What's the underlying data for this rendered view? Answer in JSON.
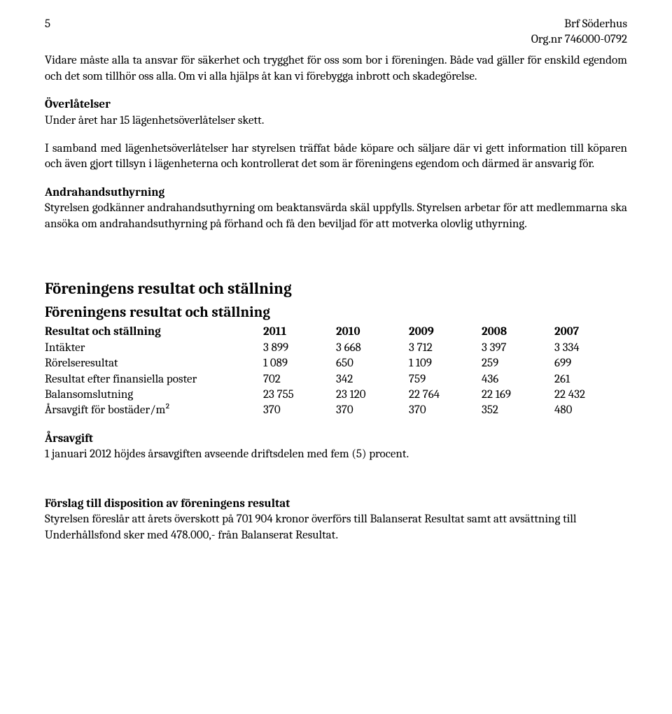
{
  "header": {
    "page_number": "5",
    "org_name": "Brf Söderhus",
    "org_nr": "Org.nr 746000-0792"
  },
  "intro": {
    "text": "Vidare måste alla ta ansvar för säkerhet och trygghet för oss som bor i föreningen. Både vad gäller för enskild egendom och det som tillhör oss alla. Om vi alla hjälps åt kan vi förebygga inbrott och skadegörelse."
  },
  "overlatelser": {
    "heading": "Överlåtelser",
    "line1": "Under året har 15 lägenhetsöverlåtelser skett.",
    "para2": "I samband med lägenhetsöverlåtelser har styrelsen träffat både köpare och säljare där vi gett information till köparen och även gjort tillsyn i lägenheterna och kontrollerat det som är föreningens egendom och därmed är ansvarig för."
  },
  "andrahand": {
    "heading": "Andrahandsuthyrning",
    "text": "Styrelsen godkänner andrahandsuthyrning om beaktansvärda skäl uppfylls. Styrelsen arbetar för att medlemmarna ska ansöka om andrahandsuthyrning på förhand och få den beviljad för att motverka olovlig uthyrning."
  },
  "resultat": {
    "h1": "Föreningens resultat och ställning",
    "h2": "Föreningens resultat och ställning",
    "table": {
      "header_label": "Resultat och ställning",
      "years": [
        "2011",
        "2010",
        "2009",
        "2008",
        "2007"
      ],
      "rows": [
        {
          "label": "Intäkter",
          "values": [
            "3 899",
            "3 668",
            "3 712",
            "3 397",
            "3 334"
          ]
        },
        {
          "label": "Rörelseresultat",
          "values": [
            "1 089",
            "650",
            "1 109",
            "259",
            "699"
          ]
        },
        {
          "label": "Resultat efter finansiella poster",
          "values": [
            "702",
            "342",
            "759",
            "436",
            "261"
          ]
        },
        {
          "label": "Balansomslutning",
          "values": [
            "23 755",
            "23 120",
            "22 764",
            "22 169",
            "22 432"
          ]
        },
        {
          "label": "Årsavgift för bostäder/m²",
          "values": [
            "370",
            "370",
            "370",
            "352",
            "480"
          ]
        }
      ]
    }
  },
  "arsavgift": {
    "heading": "Årsavgift",
    "text": "1 januari 2012 höjdes årsavgiften avseende driftsdelen med fem (5) procent."
  },
  "forslag": {
    "heading": "Förslag till disposition av föreningens resultat",
    "text": "Styrelsen föreslår att årets överskott på 701 904 kronor överförs till Balanserat Resultat samt att avsättning till Underhållsfond sker med 478.000,- från Balanserat Resultat."
  }
}
